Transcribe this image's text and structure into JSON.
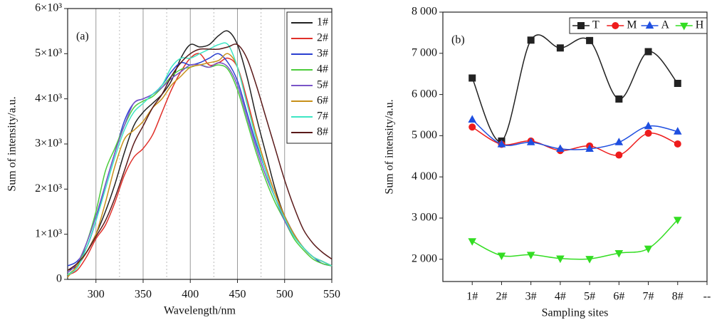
{
  "chart_data": [
    {
      "type": "line",
      "annotation": "(a)",
      "xlabel": "Wavelength/nm",
      "ylabel": "Sum of intensity/a.u.",
      "xlim": [
        270,
        550
      ],
      "xticks": [
        300,
        350,
        400,
        450,
        500,
        550
      ],
      "xminorticks": [
        325,
        375,
        425,
        475
      ],
      "grid": true,
      "ylim": [
        0,
        6000
      ],
      "yticks": [
        0,
        {
          "value": 1000,
          "label": "1×10³"
        },
        {
          "value": 2000,
          "label": "2×10³"
        },
        {
          "value": 3000,
          "label": "3×10³"
        },
        {
          "value": 4000,
          "label": "4×10³"
        },
        {
          "value": 5000,
          "label": "5×10³"
        },
        {
          "value": 6000,
          "label": "6×10³"
        }
      ],
      "legend": "upper right",
      "x": [
        270,
        280,
        290,
        300,
        310,
        320,
        330,
        340,
        350,
        360,
        370,
        380,
        390,
        400,
        410,
        420,
        430,
        440,
        450,
        460,
        470,
        480,
        490,
        500,
        510,
        520,
        530,
        540,
        550
      ],
      "series": [
        {
          "name": "1#",
          "color": "#222222",
          "values": [
            200,
            300,
            600,
            1000,
            1500,
            2100,
            2800,
            3400,
            3700,
            3900,
            4100,
            4400,
            4900,
            5200,
            5150,
            5200,
            5400,
            5500,
            5200,
            4500,
            3600,
            2800,
            2000,
            1400,
            1000,
            700,
            500,
            400,
            300
          ]
        },
        {
          "name": "2#",
          "color": "#e0302a",
          "values": [
            100,
            200,
            500,
            900,
            1200,
            1700,
            2300,
            2700,
            2900,
            3200,
            3700,
            4200,
            4600,
            4900,
            5000,
            4750,
            4800,
            4900,
            4700,
            4000,
            3200,
            2500,
            1900,
            1400,
            1000,
            700,
            500,
            400,
            300
          ]
        },
        {
          "name": "3#",
          "color": "#2a3fd0",
          "values": [
            300,
            400,
            700,
            1300,
            2100,
            2800,
            3500,
            3900,
            4000,
            4100,
            4300,
            4600,
            4800,
            4750,
            4800,
            4900,
            5000,
            4800,
            4400,
            3700,
            3000,
            2400,
            1800,
            1400,
            1000,
            700,
            500,
            350,
            300
          ]
        },
        {
          "name": "4#",
          "color": "#4ccc3c",
          "values": [
            100,
            300,
            800,
            1500,
            2400,
            2900,
            3400,
            3800,
            3950,
            4050,
            4250,
            4500,
            4650,
            4700,
            4750,
            4700,
            4750,
            4650,
            4200,
            3500,
            2800,
            2200,
            1700,
            1300,
            900,
            650,
            450,
            350,
            300
          ]
        },
        {
          "name": "5#",
          "color": "#7a55c8",
          "values": [
            150,
            350,
            800,
            1400,
            2100,
            2800,
            3400,
            3900,
            4000,
            4100,
            4250,
            4450,
            4600,
            4750,
            4750,
            4700,
            4800,
            4700,
            4300,
            3600,
            2900,
            2300,
            1800,
            1300,
            950,
            700,
            500,
            400,
            300
          ]
        },
        {
          "name": "6#",
          "color": "#c8901a",
          "values": [
            50,
            300,
            600,
            1000,
            1700,
            2500,
            3100,
            3300,
            3500,
            3800,
            4000,
            4300,
            4500,
            4700,
            4750,
            4800,
            4850,
            5000,
            4700,
            3900,
            3200,
            2500,
            1900,
            1400,
            1000,
            700,
            500,
            400,
            300
          ]
        },
        {
          "name": "7#",
          "color": "#3ee6c4",
          "values": [
            100,
            250,
            700,
            1300,
            2000,
            2700,
            3300,
            3700,
            3900,
            4100,
            4300,
            4700,
            4900,
            4900,
            5000,
            5100,
            5200,
            5200,
            4700,
            3900,
            3100,
            2400,
            1800,
            1350,
            950,
            700,
            500,
            400,
            300
          ]
        },
        {
          "name": "8#",
          "color": "#5a1a1a",
          "values": [
            200,
            350,
            600,
            950,
            1300,
            1800,
            2400,
            3000,
            3400,
            3800,
            4100,
            4500,
            4800,
            5000,
            5100,
            5100,
            5100,
            5150,
            5200,
            4900,
            4300,
            3600,
            2900,
            2200,
            1600,
            1100,
            800,
            600,
            450
          ]
        }
      ]
    },
    {
      "type": "line",
      "annotation": "(b)",
      "xlabel": "Sampling sites",
      "ylabel": "Sum of intensity/a.u.",
      "xlim": [
        0,
        9
      ],
      "xticks": [
        {
          "value": 1,
          "label": "1#"
        },
        {
          "value": 2,
          "label": "2#"
        },
        {
          "value": 3,
          "label": "3#"
        },
        {
          "value": 4,
          "label": "4#"
        },
        {
          "value": 5,
          "label": "5#"
        },
        {
          "value": 6,
          "label": "6#"
        },
        {
          "value": 7,
          "label": "7#"
        },
        {
          "value": 8,
          "label": "8#"
        },
        {
          "value": 9,
          "label": "--"
        }
      ],
      "ylim": [
        1460,
        8000
      ],
      "yticks": [
        {
          "value": 2000,
          "label": "2 000"
        },
        {
          "value": 3000,
          "label": "3 000"
        },
        {
          "value": 4000,
          "label": "4 000"
        },
        {
          "value": 5000,
          "label": "5 000"
        },
        {
          "value": 6000,
          "label": "6 000"
        },
        {
          "value": 7000,
          "label": "7 000"
        },
        {
          "value": 8000,
          "label": "8 000"
        }
      ],
      "legend": "upper right",
      "x": [
        1,
        2,
        3,
        4,
        5,
        6,
        7,
        8
      ],
      "series": [
        {
          "name": "T",
          "color": "#222222",
          "marker": "square",
          "values": [
            6400,
            4870,
            7320,
            7130,
            7310,
            5890,
            7040,
            6270
          ]
        },
        {
          "name": "M",
          "color": "#ee1c1c",
          "marker": "circle",
          "values": [
            5210,
            4790,
            4870,
            4640,
            4750,
            4530,
            5060,
            4800
          ]
        },
        {
          "name": "A",
          "color": "#1f4fe0",
          "marker": "triangle-up",
          "values": [
            5390,
            4790,
            4840,
            4680,
            4680,
            4840,
            5230,
            5100
          ]
        },
        {
          "name": "H",
          "color": "#33dd22",
          "marker": "triangle-down",
          "values": [
            2440,
            2090,
            2110,
            2020,
            2010,
            2150,
            2260,
            2960
          ]
        }
      ]
    }
  ]
}
